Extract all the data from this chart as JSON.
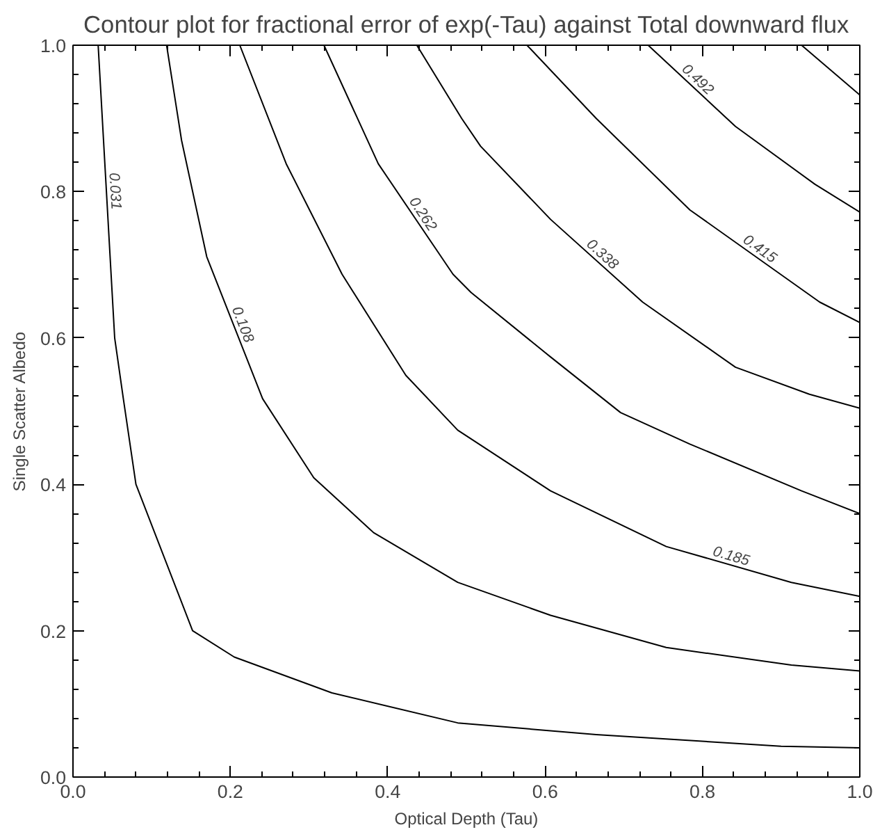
{
  "chart_data": {
    "type": "line",
    "title": "Contour plot for fractional error of exp(-Tau) against Total downward flux",
    "xlabel": "Optical Depth (Tau)",
    "ylabel": "Single Scatter Albedo",
    "xlim": [
      0,
      1
    ],
    "ylim": [
      0,
      1
    ],
    "xticks": [
      {
        "value": 0,
        "label": "0.0"
      },
      0.2,
      0.4,
      0.6,
      0.8,
      {
        "value": 1,
        "label": "1.0"
      }
    ],
    "yticks": [
      {
        "value": 0,
        "label": "0.0"
      },
      0.2,
      0.4,
      0.6,
      0.8,
      {
        "value": 1,
        "label": "1.0"
      }
    ],
    "grid": false,
    "marker": "none",
    "line_style": "solid",
    "series": [
      {
        "name": "0.031",
        "color": "#000000",
        "x": [
          0.032,
          0.053,
          0.064,
          0.08,
          0.152,
          0.205,
          0.329,
          0.489,
          0.665,
          0.9,
          1.0
        ],
        "values": [
          1.0,
          0.6,
          0.517,
          0.4,
          0.2,
          0.164,
          0.115,
          0.074,
          0.058,
          0.042,
          0.04
        ]
      },
      {
        "name": "0.108",
        "color": "#000000",
        "x": [
          0.119,
          0.138,
          0.17,
          0.241,
          0.306,
          0.382,
          0.489,
          0.607,
          0.754,
          0.913,
          1.0
        ],
        "values": [
          1.0,
          0.87,
          0.711,
          0.517,
          0.409,
          0.334,
          0.266,
          0.221,
          0.177,
          0.153,
          0.145
        ]
      },
      {
        "name": "0.185",
        "color": "#000000",
        "x": [
          0.212,
          0.271,
          0.342,
          0.423,
          0.489,
          0.607,
          0.754,
          0.913,
          1.0
        ],
        "values": [
          1.0,
          0.838,
          0.687,
          0.549,
          0.474,
          0.391,
          0.315,
          0.266,
          0.247
        ]
      },
      {
        "name": "0.262",
        "color": "#000000",
        "x": [
          0.319,
          0.388,
          0.483,
          0.506,
          0.607,
          0.696,
          0.784,
          0.926,
          1.0
        ],
        "values": [
          1.0,
          0.838,
          0.687,
          0.662,
          0.574,
          0.498,
          0.455,
          0.391,
          0.36
        ]
      },
      {
        "name": "0.338",
        "color": "#000000",
        "x": [
          0.437,
          0.494,
          0.518,
          0.607,
          0.724,
          0.842,
          0.936,
          1.0
        ],
        "values": [
          1.0,
          0.9,
          0.862,
          0.762,
          0.649,
          0.56,
          0.523,
          0.504
        ]
      },
      {
        "name": "0.415",
        "color": "#000000",
        "x": [
          0.577,
          0.665,
          0.784,
          0.949,
          1.0
        ],
        "values": [
          1.0,
          0.9,
          0.775,
          0.649,
          0.621
        ]
      },
      {
        "name": "0.492",
        "color": "#000000",
        "x": [
          0.731,
          0.842,
          0.943,
          1.0
        ],
        "values": [
          1.0,
          0.889,
          0.81,
          0.772
        ]
      },
      {
        "color": "#000000",
        "x": [
          0.926,
          1.0
        ],
        "values": [
          1.0,
          0.932
        ]
      }
    ]
  }
}
